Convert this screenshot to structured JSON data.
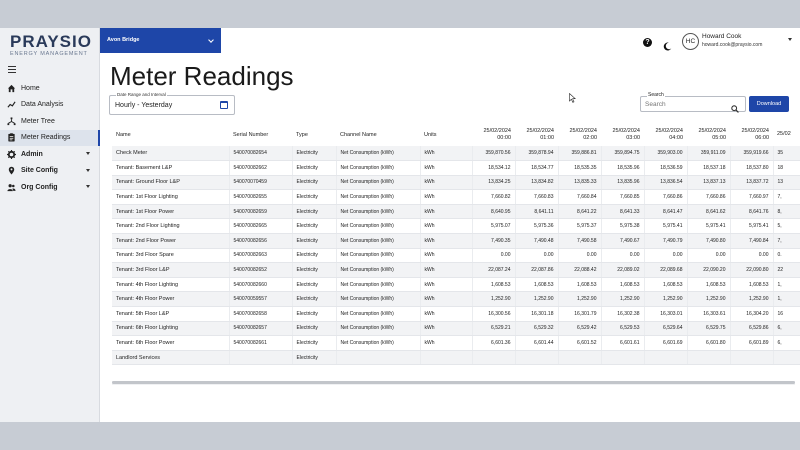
{
  "app": {
    "logo_main": "PRAYSIO",
    "logo_sub": "ENERGY MANAGEMENT",
    "site": "Avon Bridge",
    "accent": "#1e46a8"
  },
  "user": {
    "initials": "HC",
    "name": "Howard Cook",
    "email": "howard.cook@praysio.com"
  },
  "nav": [
    {
      "label": "Home",
      "icon": "home-icon"
    },
    {
      "label": "Data Analysis",
      "icon": "chart-line-icon"
    },
    {
      "label": "Meter Tree",
      "icon": "tree-icon"
    },
    {
      "label": "Meter Readings",
      "icon": "clipboard-icon",
      "active": true
    },
    {
      "label": "Admin",
      "icon": "gear-icon",
      "expandable": true
    },
    {
      "label": "Site Config",
      "icon": "location-icon",
      "expandable": true
    },
    {
      "label": "Org Config",
      "icon": "users-icon",
      "expandable": true
    }
  ],
  "page": {
    "title": "Meter Readings",
    "date_label": "Date Range and Interval",
    "date_value": "Hourly - Yesterday",
    "search_label": "Search",
    "search_placeholder": "Search",
    "download_label": "Download"
  },
  "table": {
    "headers": [
      "Name",
      "Serial Number",
      "Type",
      "Channel Name",
      "Units"
    ],
    "time_headers": [
      {
        "date": "25/02/2024",
        "time": "00:00"
      },
      {
        "date": "25/02/2024",
        "time": "01:00"
      },
      {
        "date": "25/02/2024",
        "time": "02:00"
      },
      {
        "date": "25/02/2024",
        "time": "03:00"
      },
      {
        "date": "25/02/2024",
        "time": "04:00"
      },
      {
        "date": "25/02/2024",
        "time": "05:00"
      },
      {
        "date": "25/02/2024",
        "time": "06:00"
      },
      {
        "date": "25/02",
        "time": ""
      }
    ],
    "rows": [
      {
        "name": "Check Meter",
        "serial": "540070082654",
        "type": "Electricity",
        "channel": "Net Consumption (kWh)",
        "units": "kWh",
        "values": [
          "359,870.56",
          "359,878.94",
          "359,886.81",
          "359,894.75",
          "359,903.00",
          "359,911.09",
          "359,919.66",
          "35"
        ]
      },
      {
        "name": "Tenant: Basement L&P",
        "serial": "540070082662",
        "type": "Electricity",
        "channel": "Net Consumption (kWh)",
        "units": "kWh",
        "values": [
          "18,534.12",
          "18,534.77",
          "18,535.35",
          "18,535.96",
          "18,536.59",
          "18,537.18",
          "18,537.80",
          "18"
        ]
      },
      {
        "name": "Tenant: Ground Floor L&P",
        "serial": "540070070459",
        "type": "Electricity",
        "channel": "Net Consumption (kWh)",
        "units": "kWh",
        "values": [
          "13,834.25",
          "13,834.82",
          "13,835.33",
          "13,835.96",
          "13,836.54",
          "13,837.13",
          "13,837.72",
          "13"
        ]
      },
      {
        "name": "Tenant: 1st Floor Lighting",
        "serial": "540070082655",
        "type": "Electricity",
        "channel": "Net Consumption (kWh)",
        "units": "kWh",
        "values": [
          "7,660.82",
          "7,660.83",
          "7,660.84",
          "7,660.85",
          "7,660.86",
          "7,660.86",
          "7,660.97",
          "7,"
        ]
      },
      {
        "name": "Tenant: 1st Floor Power",
        "serial": "540070082659",
        "type": "Electricity",
        "channel": "Net Consumption (kWh)",
        "units": "kWh",
        "values": [
          "8,640.95",
          "8,641.11",
          "8,641.22",
          "8,641.33",
          "8,641.47",
          "8,641.62",
          "8,641.76",
          "8,"
        ]
      },
      {
        "name": "Tenant: 2nd Floor Lighting",
        "serial": "540070082665",
        "type": "Electricity",
        "channel": "Net Consumption (kWh)",
        "units": "kWh",
        "values": [
          "5,975.07",
          "5,975.36",
          "5,975.37",
          "5,975.38",
          "5,975.41",
          "5,975.41",
          "5,975.41",
          "5,"
        ]
      },
      {
        "name": "Tenant: 2nd Floor Power",
        "serial": "540070082656",
        "type": "Electricity",
        "channel": "Net Consumption (kWh)",
        "units": "kWh",
        "values": [
          "7,490.35",
          "7,490.48",
          "7,490.58",
          "7,490.67",
          "7,490.79",
          "7,490.80",
          "7,490.84",
          "7,"
        ]
      },
      {
        "name": "Tenant: 3rd Floor Spare",
        "serial": "540070082663",
        "type": "Electricity",
        "channel": "Net Consumption (kWh)",
        "units": "kWh",
        "values": [
          "0.00",
          "0.00",
          "0.00",
          "0.00",
          "0.00",
          "0.00",
          "0.00",
          "0."
        ]
      },
      {
        "name": "Tenant: 3rd Floor L&P",
        "serial": "540070082652",
        "type": "Electricity",
        "channel": "Net Consumption (kWh)",
        "units": "kWh",
        "values": [
          "22,087.24",
          "22,087.86",
          "22,088.42",
          "22,089.02",
          "22,089.68",
          "22,090.20",
          "22,090.80",
          "22"
        ]
      },
      {
        "name": "Tenant: 4th Floor Lighting",
        "serial": "540070082660",
        "type": "Electricity",
        "channel": "Net Consumption (kWh)",
        "units": "kWh",
        "values": [
          "1,608.53",
          "1,608.53",
          "1,608.53",
          "1,608.53",
          "1,608.53",
          "1,608.53",
          "1,608.53",
          "1,"
        ]
      },
      {
        "name": "Tenant: 4th Floor Power",
        "serial": "540070059557",
        "type": "Electricity",
        "channel": "Net Consumption (kWh)",
        "units": "kWh",
        "values": [
          "1,252.90",
          "1,252.90",
          "1,252.90",
          "1,252.90",
          "1,252.90",
          "1,252.90",
          "1,252.90",
          "1,"
        ]
      },
      {
        "name": "Tenant: 5th Floor L&P",
        "serial": "540070082658",
        "type": "Electricity",
        "channel": "Net Consumption (kWh)",
        "units": "kWh",
        "values": [
          "16,300.56",
          "16,301.18",
          "16,301.79",
          "16,302.38",
          "16,303.01",
          "16,303.61",
          "16,304.20",
          "16"
        ]
      },
      {
        "name": "Tenant: 6th Floor Lighting",
        "serial": "540070082657",
        "type": "Electricity",
        "channel": "Net Consumption (kWh)",
        "units": "kWh",
        "values": [
          "6,529.21",
          "6,529.32",
          "6,529.42",
          "6,529.53",
          "6,529.64",
          "6,529.75",
          "6,529.86",
          "6,"
        ]
      },
      {
        "name": "Tenant: 6th Floor Power",
        "serial": "540070082661",
        "type": "Electricity",
        "channel": "Net Consumption (kWh)",
        "units": "kWh",
        "values": [
          "6,601.36",
          "6,601.44",
          "6,601.52",
          "6,601.61",
          "6,601.69",
          "6,601.80",
          "6,601.89",
          "6,"
        ]
      },
      {
        "name": "Landlord Services",
        "serial": "",
        "type": "Electricity",
        "channel": "",
        "units": "",
        "values": [
          "",
          "",
          "",
          "",
          "",
          "",
          "",
          ""
        ]
      }
    ]
  }
}
